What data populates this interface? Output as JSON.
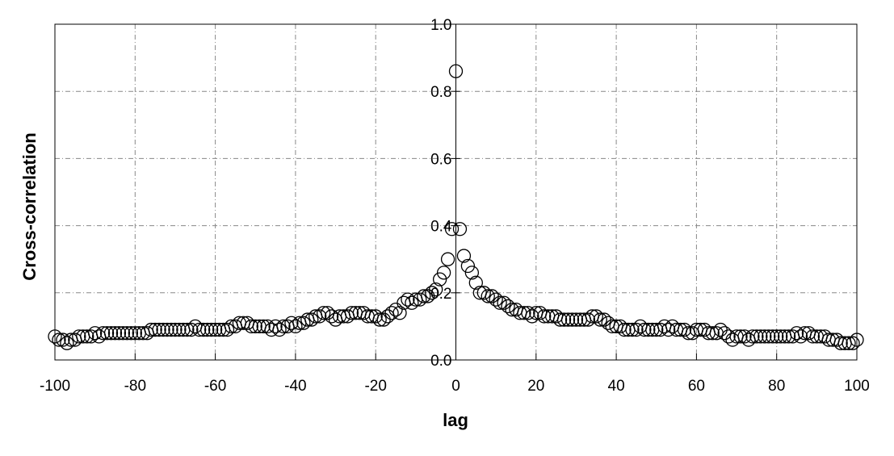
{
  "chart_data": {
    "type": "scatter",
    "xlabel": "lag",
    "ylabel": "Cross-correlation",
    "x": [
      -100,
      -99,
      -98,
      -97,
      -96,
      -95,
      -94,
      -93,
      -92,
      -91,
      -90,
      -89,
      -88,
      -87,
      -86,
      -85,
      -84,
      -83,
      -82,
      -81,
      -80,
      -79,
      -78,
      -77,
      -76,
      -75,
      -74,
      -73,
      -72,
      -71,
      -70,
      -69,
      -68,
      -67,
      -66,
      -65,
      -64,
      -63,
      -62,
      -61,
      -60,
      -59,
      -58,
      -57,
      -56,
      -55,
      -54,
      -53,
      -52,
      -51,
      -50,
      -49,
      -48,
      -47,
      -46,
      -45,
      -44,
      -43,
      -42,
      -41,
      -40,
      -39,
      -38,
      -37,
      -36,
      -35,
      -34,
      -33,
      -32,
      -31,
      -30,
      -29,
      -28,
      -27,
      -26,
      -25,
      -24,
      -23,
      -22,
      -21,
      -20,
      -19,
      -18,
      -17,
      -16,
      -15,
      -14,
      -13,
      -12,
      -11,
      -10,
      -9,
      -8,
      -7,
      -6,
      -5,
      -4,
      -3,
      -2,
      -1,
      0,
      1,
      2,
      3,
      4,
      5,
      6,
      7,
      8,
      9,
      10,
      11,
      12,
      13,
      14,
      15,
      16,
      17,
      18,
      19,
      20,
      21,
      22,
      23,
      24,
      25,
      26,
      27,
      28,
      29,
      30,
      31,
      32,
      33,
      34,
      35,
      36,
      37,
      38,
      39,
      40,
      41,
      42,
      43,
      44,
      45,
      46,
      47,
      48,
      49,
      50,
      51,
      52,
      53,
      54,
      55,
      56,
      57,
      58,
      59,
      60,
      61,
      62,
      63,
      64,
      65,
      66,
      67,
      68,
      69,
      70,
      71,
      72,
      73,
      74,
      75,
      76,
      77,
      78,
      79,
      80,
      81,
      82,
      83,
      84,
      85,
      86,
      87,
      88,
      89,
      90,
      91,
      92,
      93,
      94,
      95,
      96,
      97,
      98,
      99,
      100
    ],
    "values": [
      0.07,
      0.06,
      0.06,
      0.05,
      0.06,
      0.06,
      0.07,
      0.07,
      0.07,
      0.07,
      0.08,
      0.07,
      0.08,
      0.08,
      0.08,
      0.08,
      0.08,
      0.08,
      0.08,
      0.08,
      0.08,
      0.08,
      0.08,
      0.08,
      0.09,
      0.09,
      0.09,
      0.09,
      0.09,
      0.09,
      0.09,
      0.09,
      0.09,
      0.09,
      0.09,
      0.1,
      0.09,
      0.09,
      0.09,
      0.09,
      0.09,
      0.09,
      0.09,
      0.09,
      0.1,
      0.1,
      0.11,
      0.11,
      0.11,
      0.1,
      0.1,
      0.1,
      0.1,
      0.1,
      0.09,
      0.1,
      0.09,
      0.1,
      0.1,
      0.11,
      0.1,
      0.11,
      0.11,
      0.12,
      0.12,
      0.13,
      0.13,
      0.14,
      0.14,
      0.13,
      0.12,
      0.13,
      0.13,
      0.13,
      0.14,
      0.14,
      0.14,
      0.14,
      0.13,
      0.13,
      0.13,
      0.12,
      0.12,
      0.13,
      0.14,
      0.15,
      0.14,
      0.17,
      0.18,
      0.17,
      0.18,
      0.18,
      0.19,
      0.19,
      0.2,
      0.21,
      0.24,
      0.26,
      0.3,
      0.39,
      0.86,
      0.39,
      0.31,
      0.28,
      0.26,
      0.23,
      0.2,
      0.2,
      0.19,
      0.19,
      0.18,
      0.17,
      0.17,
      0.16,
      0.15,
      0.15,
      0.14,
      0.14,
      0.14,
      0.13,
      0.14,
      0.14,
      0.13,
      0.13,
      0.13,
      0.13,
      0.12,
      0.12,
      0.12,
      0.12,
      0.12,
      0.12,
      0.12,
      0.12,
      0.13,
      0.13,
      0.12,
      0.12,
      0.11,
      0.1,
      0.1,
      0.1,
      0.09,
      0.09,
      0.09,
      0.09,
      0.1,
      0.09,
      0.09,
      0.09,
      0.09,
      0.09,
      0.1,
      0.09,
      0.1,
      0.09,
      0.09,
      0.09,
      0.08,
      0.08,
      0.09,
      0.09,
      0.09,
      0.08,
      0.08,
      0.08,
      0.09,
      0.08,
      0.07,
      0.06,
      0.07,
      0.07,
      0.07,
      0.06,
      0.07,
      0.07,
      0.07,
      0.07,
      0.07,
      0.07,
      0.07,
      0.07,
      0.07,
      0.07,
      0.07,
      0.08,
      0.07,
      0.08,
      0.08,
      0.07,
      0.07,
      0.07,
      0.07,
      0.06,
      0.06,
      0.06,
      0.05,
      0.05,
      0.05,
      0.05,
      0.06
    ],
    "color": "#000000",
    "xlim": [
      -100,
      100
    ],
    "xticks": [
      -100,
      -80,
      -60,
      -40,
      -20,
      0,
      20,
      40,
      60,
      80,
      100
    ],
    "ylim": [
      0,
      1
    ],
    "yticks": [
      {
        "value": 0,
        "label": "0.0"
      },
      0.2,
      0.4,
      0.6,
      0.8,
      {
        "value": 1,
        "label": "1.0"
      }
    ],
    "grid": true
  }
}
